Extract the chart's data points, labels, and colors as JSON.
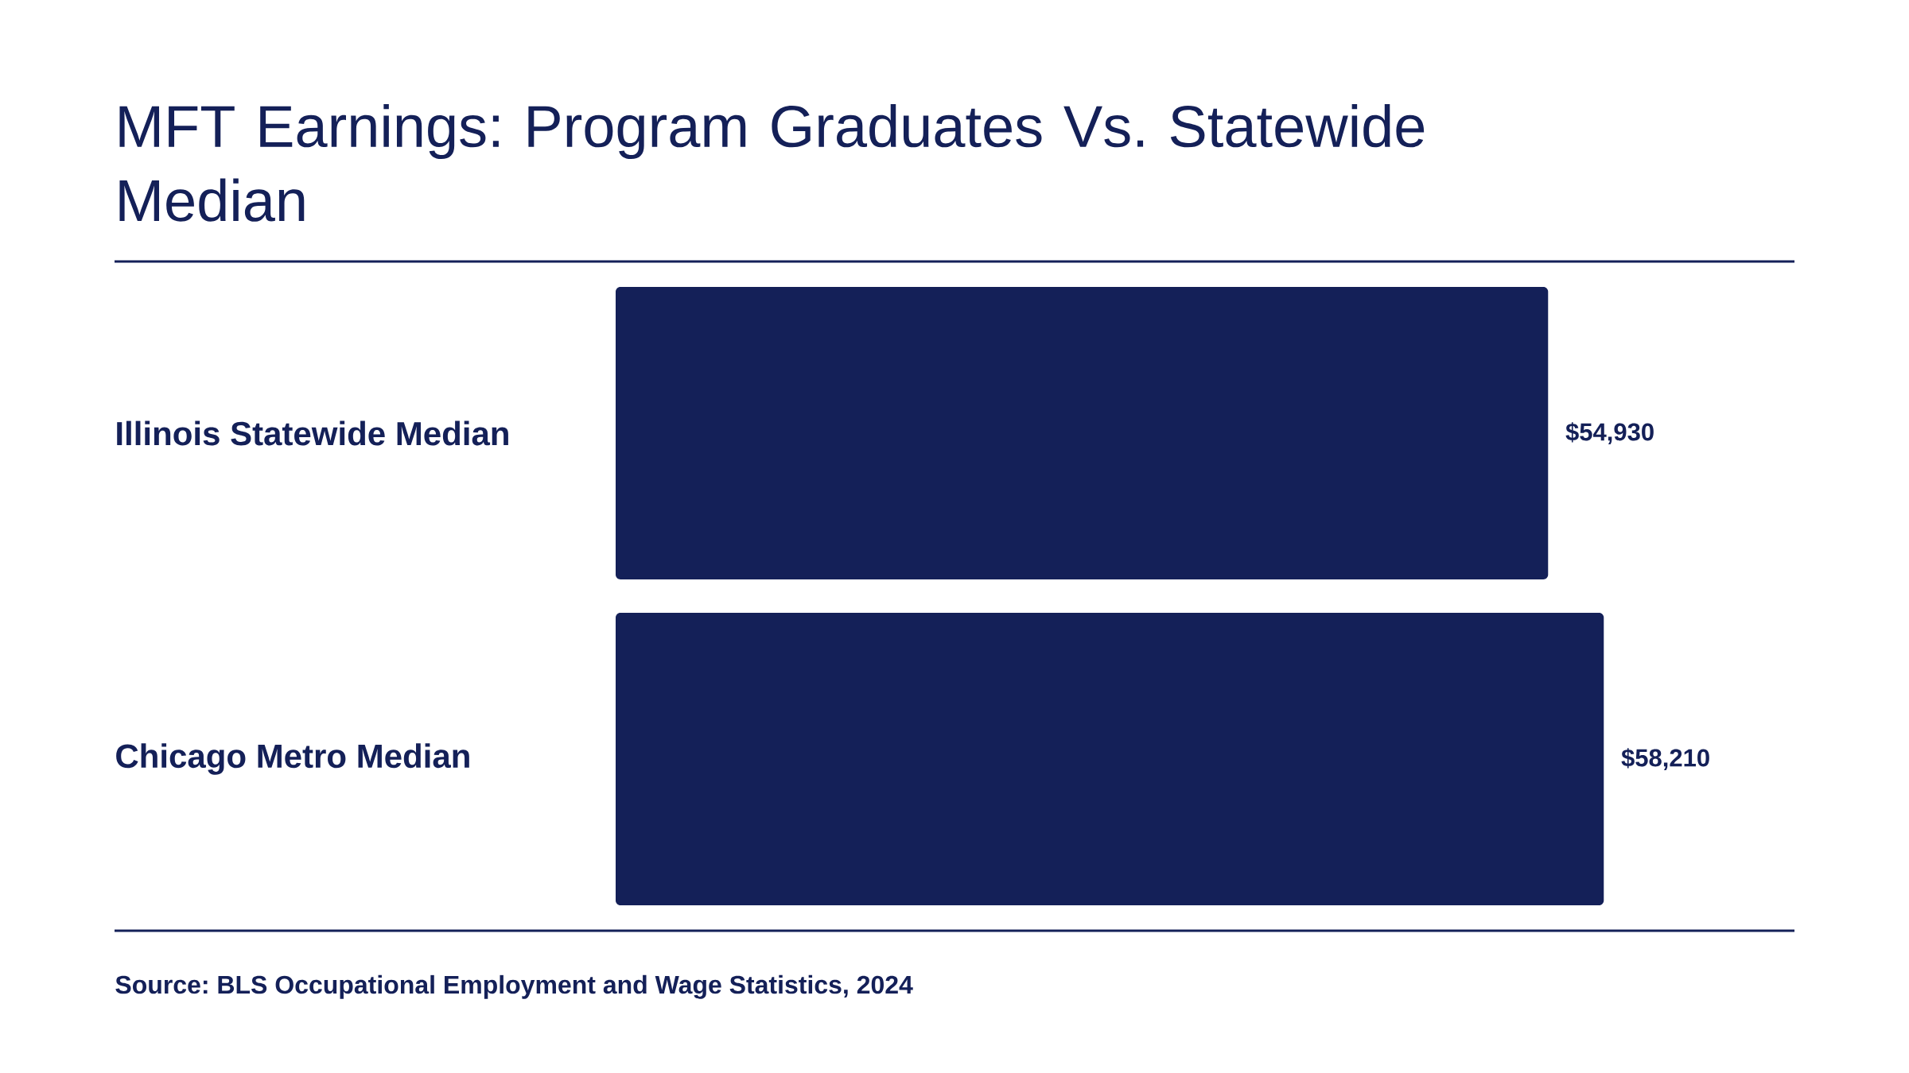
{
  "chart_data": {
    "type": "bar",
    "orientation": "horizontal",
    "title": "MFT Earnings: Program Graduates Vs. Statewide Median",
    "categories": [
      "Illinois Statewide Median",
      "Chicago Metro Median"
    ],
    "values": [
      54930,
      58210
    ],
    "value_labels": [
      "$54,930",
      "$58,210"
    ],
    "color": "#142058",
    "annotations": [
      "Source: BLS Occupational Employment and Wage Statistics, 2024"
    ]
  }
}
